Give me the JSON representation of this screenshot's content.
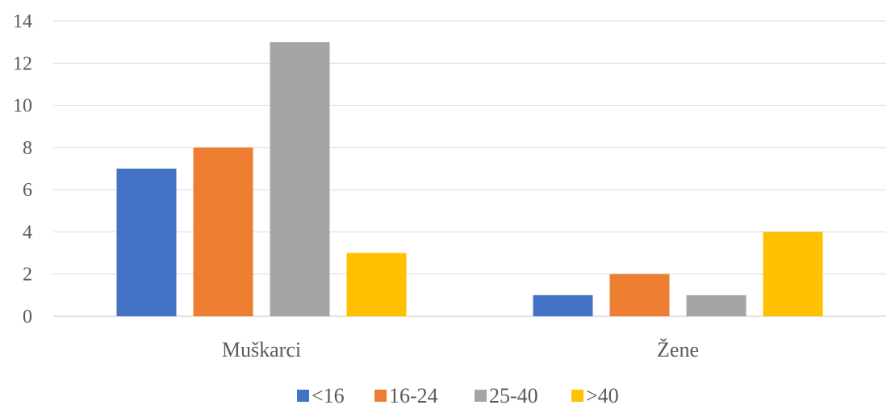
{
  "chart_data": {
    "type": "bar",
    "categories": [
      "Muškarci",
      "Žene"
    ],
    "series": [
      {
        "name": "<16",
        "values": [
          7,
          1
        ],
        "color": "#4472C4"
      },
      {
        "name": "16-24",
        "values": [
          8,
          2
        ],
        "color": "#ED7D31"
      },
      {
        "name": "25-40",
        "values": [
          13,
          1
        ],
        "color": "#A5A5A5"
      },
      {
        "name": ">40",
        "values": [
          3,
          4
        ],
        "color": "#FFC000"
      }
    ],
    "title": "",
    "xlabel": "",
    "ylabel": "",
    "ylim": [
      0,
      14
    ],
    "yticks": [
      0,
      2,
      4,
      6,
      8,
      10,
      12,
      14
    ],
    "grid": true,
    "legend_position": "bottom",
    "grid_color": "#D9D9D9"
  }
}
